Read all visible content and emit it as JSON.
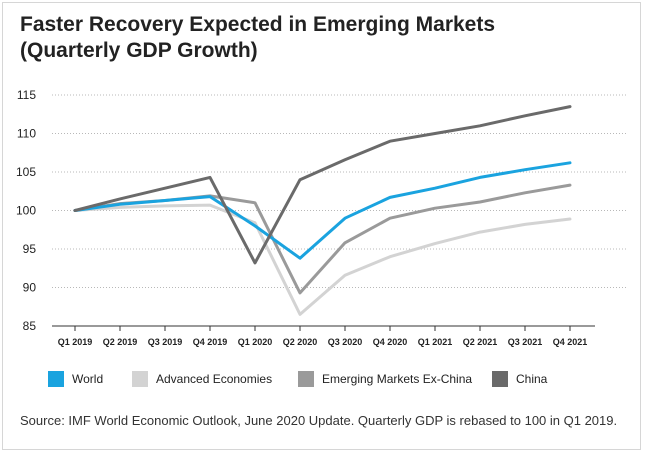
{
  "chart_data": {
    "type": "line",
    "title": [
      "Faster Recovery Expected in Emerging Markets",
      "(Quarterly GDP Growth)"
    ],
    "xlabel": "",
    "ylabel": "",
    "categories": [
      "Q1 2019",
      "Q2 2019",
      "Q3 2019",
      "Q4 2019",
      "Q1 2020",
      "Q2 2020",
      "Q3 2020",
      "Q4 2020",
      "Q1 2021",
      "Q2 2021",
      "Q3 2021",
      "Q4 2021"
    ],
    "ylim": [
      85,
      115
    ],
    "yticks": [
      85,
      90,
      95,
      100,
      105,
      110,
      115
    ],
    "grid": "horizontal-dotted",
    "legend_position": "bottom",
    "series": [
      {
        "name": "World",
        "color": "#1aa3df",
        "values": [
          100,
          100.8,
          101.3,
          101.8,
          98.0,
          93.8,
          99.0,
          101.7,
          102.9,
          104.3,
          105.3,
          106.2
        ]
      },
      {
        "name": "Advanced Economies",
        "color": "#d3d3d3",
        "values": [
          100,
          100.4,
          100.6,
          100.7,
          98.4,
          86.5,
          91.6,
          94.0,
          95.7,
          97.2,
          98.2,
          98.9
        ]
      },
      {
        "name": "Emerging Markets Ex-China",
        "color": "#9a9a9a",
        "values": [
          100,
          100.9,
          101.3,
          101.9,
          101.0,
          89.3,
          95.8,
          99.0,
          100.3,
          101.1,
          102.3,
          103.3
        ]
      },
      {
        "name": "China",
        "color": "#6a6a6a",
        "values": [
          100,
          101.5,
          102.9,
          104.3,
          93.2,
          104.0,
          106.6,
          109.0,
          110.0,
          111.0,
          112.3,
          113.5
        ]
      }
    ]
  },
  "source": "Source: IMF World Economic Outlook, June 2020 Update. Quarterly GDP is rebased to 100 in Q1 2019."
}
